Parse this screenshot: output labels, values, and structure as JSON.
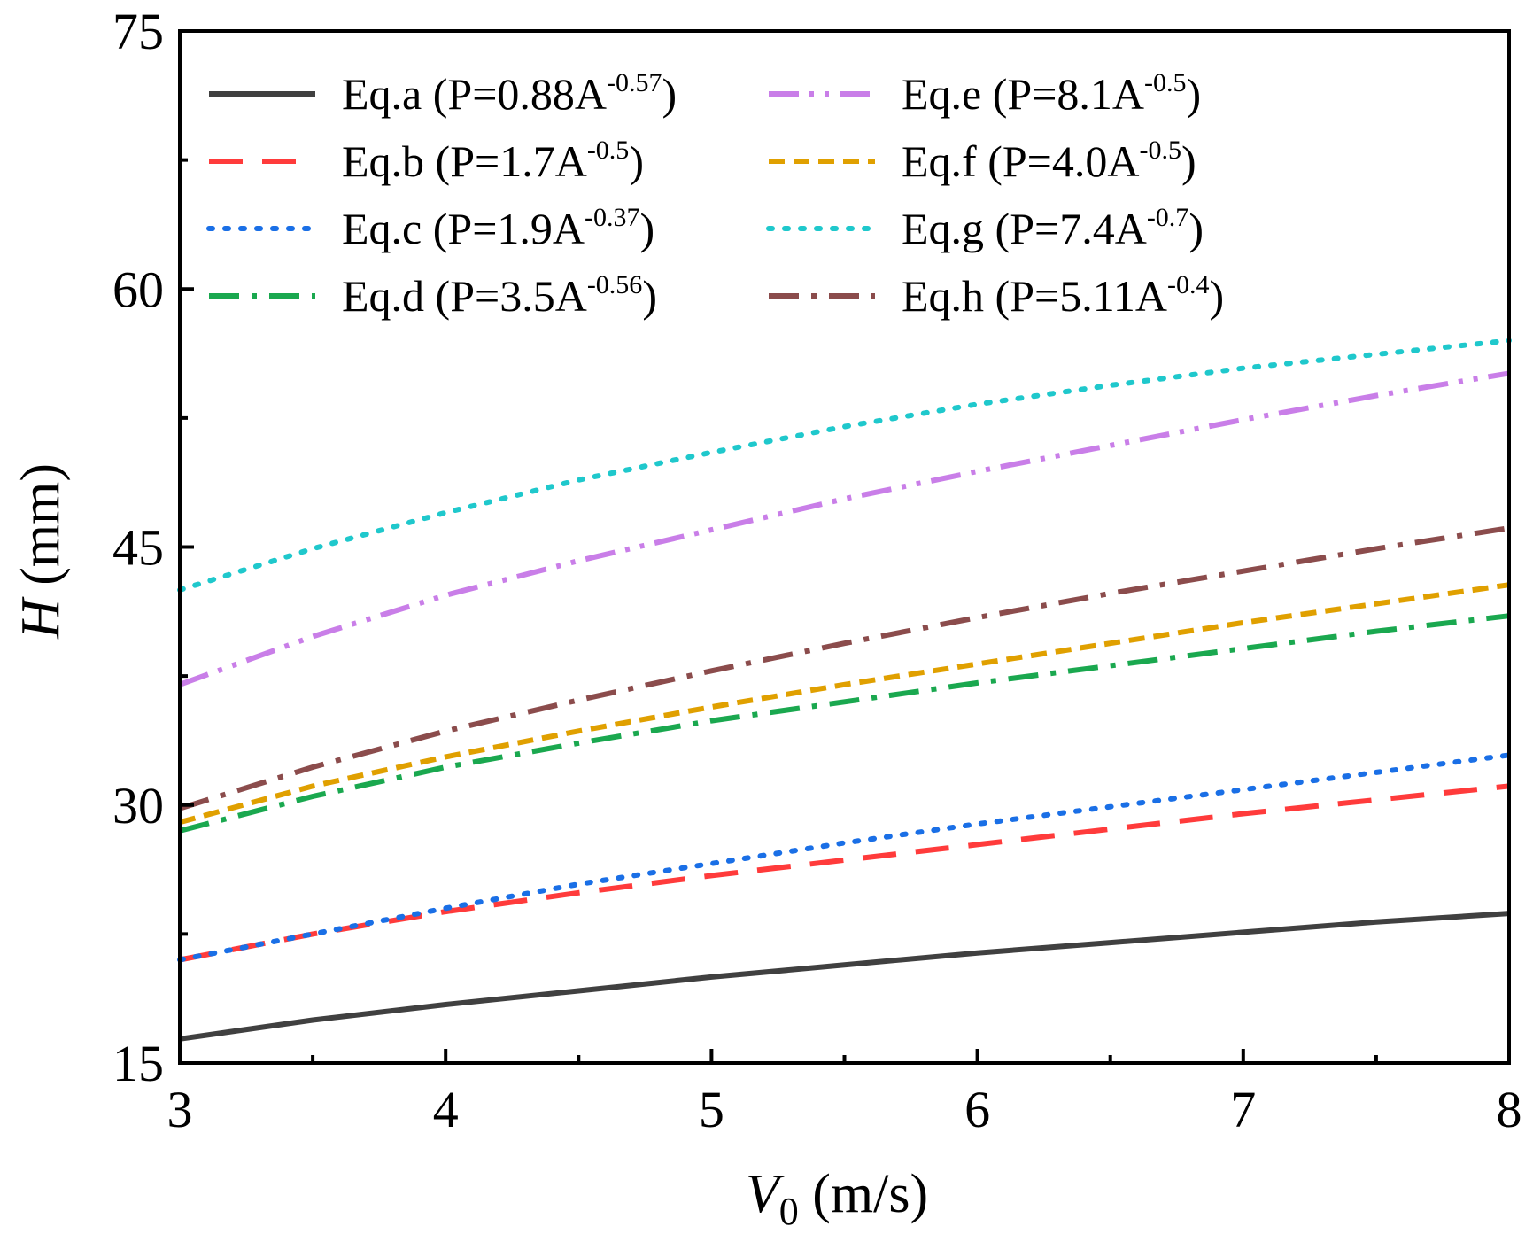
{
  "chart_data": {
    "type": "line",
    "xlabel": {
      "symbol": "V",
      "subscript": "0",
      "unit": " (m/s)"
    },
    "ylabel": {
      "symbol": "H",
      "unit": " (mm)"
    },
    "xlim": [
      3,
      8
    ],
    "ylim": [
      15,
      75
    ],
    "xticks": [
      3,
      4,
      5,
      6,
      7,
      8
    ],
    "yticks": [
      15,
      30,
      45,
      60,
      75
    ],
    "x": [
      3,
      3.5,
      4,
      4.5,
      5,
      5.5,
      6,
      6.5,
      7,
      7.5,
      8
    ],
    "legend_position": "top-left",
    "series": [
      {
        "name": "Eq.a",
        "formula": "P=0.88A",
        "exponent": "-0.57",
        "color": "#404040",
        "dash": "solid",
        "values": [
          16.4,
          17.5,
          18.4,
          19.2,
          20.0,
          20.7,
          21.4,
          22.0,
          22.6,
          23.2,
          23.7
        ]
      },
      {
        "name": "Eq.b",
        "formula": "P=1.7A",
        "exponent": "-0.5",
        "color": "#ff3b3b",
        "dash": "dash",
        "values": [
          21.0,
          22.5,
          23.8,
          24.9,
          25.9,
          26.8,
          27.7,
          28.6,
          29.5,
          30.3,
          31.1
        ]
      },
      {
        "name": "Eq.c",
        "formula": "P=1.9A",
        "exponent": "-0.37",
        "color": "#1a6fe6",
        "dash": "dot",
        "values": [
          21.0,
          22.5,
          24.0,
          25.4,
          26.6,
          27.8,
          28.9,
          29.9,
          30.9,
          31.9,
          32.9
        ]
      },
      {
        "name": "Eq.d",
        "formula": "P=3.5A",
        "exponent": "-0.56",
        "color": "#1aa84f",
        "dash": "dashdot",
        "values": [
          28.5,
          30.5,
          32.2,
          33.6,
          34.9,
          36.0,
          37.1,
          38.1,
          39.1,
          40.1,
          41.0
        ]
      },
      {
        "name": "Eq.e",
        "formula": "P=8.1A",
        "exponent": "-0.5",
        "color": "#c97ee8",
        "dash": "dashdotdot",
        "values": [
          37.0,
          39.8,
          42.2,
          44.2,
          46.0,
          47.8,
          49.4,
          50.9,
          52.4,
          53.8,
          55.1
        ]
      },
      {
        "name": "Eq.f",
        "formula": "P=4.0A",
        "exponent": "-0.5",
        "color": "#e0a000",
        "dash": "shortdash",
        "values": [
          29.0,
          31.1,
          32.8,
          34.3,
          35.7,
          37.0,
          38.2,
          39.4,
          40.6,
          41.7,
          42.8
        ]
      },
      {
        "name": "Eq.g",
        "formula": "P=7.4A",
        "exponent": "-0.7",
        "color": "#1fc8cc",
        "dash": "dot",
        "values": [
          42.5,
          44.9,
          47.0,
          48.9,
          50.5,
          52.0,
          53.3,
          54.4,
          55.4,
          56.2,
          57.0
        ]
      },
      {
        "name": "Eq.h",
        "formula": "P=5.11A",
        "exponent": "-0.4",
        "color": "#8b4c4c",
        "dash": "dashdot",
        "values": [
          29.8,
          32.2,
          34.3,
          36.1,
          37.8,
          39.4,
          40.9,
          42.3,
          43.6,
          44.9,
          46.1
        ]
      }
    ]
  }
}
